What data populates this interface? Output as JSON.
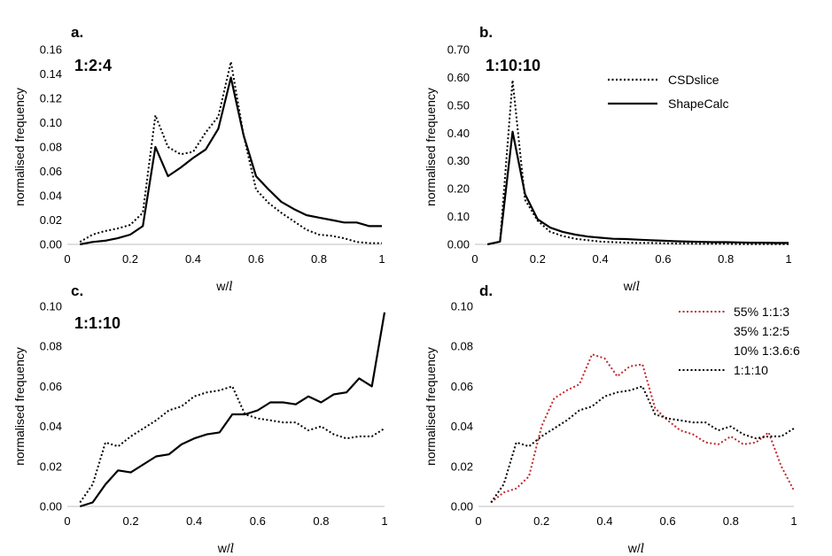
{
  "chart_data": [
    {
      "panel": "a.",
      "type": "line",
      "annotation": "1:2:4",
      "xlabel": "w/l",
      "ylabel": "normalised frequency",
      "xlim": [
        0,
        1
      ],
      "ylim": [
        0,
        0.16
      ],
      "xticks": [
        "0",
        "0.2",
        "0.4",
        "0.6",
        "0.8",
        "1"
      ],
      "yticks": [
        "0.00",
        "0.02",
        "0.04",
        "0.06",
        "0.08",
        "0.10",
        "0.12",
        "0.14",
        "0.16"
      ],
      "series": [
        {
          "name": "CSDslice",
          "style": "dotted",
          "color": "#000000",
          "x": [
            0.04,
            0.08,
            0.12,
            0.16,
            0.2,
            0.24,
            0.28,
            0.32,
            0.36,
            0.4,
            0.44,
            0.48,
            0.52,
            0.56,
            0.6,
            0.64,
            0.68,
            0.72,
            0.76,
            0.8,
            0.84,
            0.88,
            0.92,
            0.96,
            1.0
          ],
          "y": [
            0.002,
            0.008,
            0.011,
            0.013,
            0.016,
            0.026,
            0.106,
            0.08,
            0.074,
            0.076,
            0.092,
            0.105,
            0.15,
            0.09,
            0.045,
            0.034,
            0.026,
            0.019,
            0.012,
            0.008,
            0.007,
            0.005,
            0.002,
            0.001,
            0.001
          ]
        },
        {
          "name": "ShapeCalc",
          "style": "solid",
          "color": "#000000",
          "x": [
            0.04,
            0.08,
            0.12,
            0.16,
            0.2,
            0.24,
            0.28,
            0.32,
            0.36,
            0.4,
            0.44,
            0.48,
            0.52,
            0.56,
            0.6,
            0.64,
            0.68,
            0.72,
            0.76,
            0.8,
            0.84,
            0.88,
            0.92,
            0.96,
            1.0
          ],
          "y": [
            0.0,
            0.002,
            0.003,
            0.005,
            0.008,
            0.015,
            0.08,
            0.056,
            0.063,
            0.071,
            0.078,
            0.095,
            0.137,
            0.09,
            0.056,
            0.045,
            0.035,
            0.029,
            0.024,
            0.022,
            0.02,
            0.018,
            0.018,
            0.015,
            0.015
          ]
        }
      ]
    },
    {
      "panel": "b.",
      "type": "line",
      "annotation": "1:10:10",
      "xlabel": "w/l",
      "ylabel": "normalised frequency",
      "xlim": [
        0,
        1
      ],
      "ylim": [
        0,
        0.7
      ],
      "xticks": [
        "0",
        "0.2",
        "0.4",
        "0.6",
        "0.8",
        "1"
      ],
      "yticks": [
        "0.00",
        "0.10",
        "0.20",
        "0.30",
        "0.40",
        "0.50",
        "0.60",
        "0.70"
      ],
      "legend": [
        "CSDslice",
        "ShapeCalc"
      ],
      "series": [
        {
          "name": "CSDslice",
          "style": "dotted",
          "color": "#000000",
          "x": [
            0.04,
            0.08,
            0.12,
            0.16,
            0.2,
            0.24,
            0.28,
            0.32,
            0.36,
            0.4,
            0.44,
            0.48,
            0.52,
            0.56,
            0.6,
            0.64,
            0.68,
            0.72,
            0.76,
            0.8,
            0.84,
            0.88,
            0.92,
            0.96,
            1.0
          ],
          "y": [
            0.0,
            0.01,
            0.59,
            0.16,
            0.085,
            0.045,
            0.03,
            0.02,
            0.015,
            0.01,
            0.008,
            0.006,
            0.005,
            0.005,
            0.004,
            0.003,
            0.003,
            0.002,
            0.002,
            0.002,
            0.001,
            0.001,
            0.001,
            0.001,
            0.001
          ]
        },
        {
          "name": "ShapeCalc",
          "style": "solid",
          "color": "#000000",
          "x": [
            0.04,
            0.08,
            0.12,
            0.16,
            0.2,
            0.24,
            0.28,
            0.32,
            0.36,
            0.4,
            0.44,
            0.48,
            0.52,
            0.56,
            0.6,
            0.64,
            0.68,
            0.72,
            0.76,
            0.8,
            0.84,
            0.88,
            0.92,
            0.96,
            1.0
          ],
          "y": [
            0.0,
            0.01,
            0.405,
            0.18,
            0.09,
            0.06,
            0.045,
            0.035,
            0.028,
            0.024,
            0.02,
            0.019,
            0.017,
            0.015,
            0.013,
            0.011,
            0.01,
            0.009,
            0.008,
            0.008,
            0.007,
            0.006,
            0.006,
            0.005,
            0.005
          ]
        }
      ]
    },
    {
      "panel": "c.",
      "type": "line",
      "annotation": "1:1:10",
      "xlabel": "w/l",
      "ylabel": "normalised frequency",
      "xlim": [
        0,
        1
      ],
      "ylim": [
        0,
        0.1
      ],
      "xticks": [
        "0",
        "0.2",
        "0.4",
        "0.6",
        "0.8",
        "1"
      ],
      "yticks": [
        "0.00",
        "0.02",
        "0.04",
        "0.06",
        "0.08",
        "0.10"
      ],
      "series": [
        {
          "name": "CSDslice",
          "style": "dotted",
          "color": "#000000",
          "x": [
            0.04,
            0.08,
            0.12,
            0.16,
            0.2,
            0.24,
            0.28,
            0.32,
            0.36,
            0.4,
            0.44,
            0.48,
            0.52,
            0.56,
            0.6,
            0.64,
            0.68,
            0.72,
            0.76,
            0.8,
            0.84,
            0.88,
            0.92,
            0.96,
            1.0
          ],
          "y": [
            0.002,
            0.011,
            0.032,
            0.03,
            0.035,
            0.039,
            0.043,
            0.048,
            0.05,
            0.055,
            0.057,
            0.058,
            0.06,
            0.046,
            0.044,
            0.043,
            0.042,
            0.042,
            0.038,
            0.04,
            0.036,
            0.034,
            0.035,
            0.035,
            0.039
          ]
        },
        {
          "name": "ShapeCalc",
          "style": "solid",
          "color": "#000000",
          "x": [
            0.04,
            0.08,
            0.12,
            0.16,
            0.2,
            0.24,
            0.28,
            0.32,
            0.36,
            0.4,
            0.44,
            0.48,
            0.52,
            0.56,
            0.6,
            0.64,
            0.68,
            0.72,
            0.76,
            0.8,
            0.84,
            0.88,
            0.92,
            0.96,
            1.0
          ],
          "y": [
            0.0,
            0.002,
            0.011,
            0.018,
            0.017,
            0.021,
            0.025,
            0.026,
            0.031,
            0.034,
            0.036,
            0.037,
            0.046,
            0.046,
            0.048,
            0.052,
            0.052,
            0.051,
            0.055,
            0.052,
            0.056,
            0.057,
            0.064,
            0.06,
            0.097
          ]
        }
      ]
    },
    {
      "panel": "d.",
      "type": "line",
      "xlabel": "w/l",
      "ylabel": "normalised frequency",
      "xlim": [
        0,
        1
      ],
      "ylim": [
        0,
        0.1
      ],
      "xticks": [
        "0",
        "0.2",
        "0.4",
        "0.6",
        "0.8",
        "1"
      ],
      "yticks": [
        "0.00",
        "0.02",
        "0.04",
        "0.06",
        "0.08",
        "0.10"
      ],
      "legend": [
        "55% 1:1:3",
        "35% 1:2:5",
        "10% 1:3.6:6",
        "1:1:10"
      ],
      "series": [
        {
          "name": "55% 1:1:3 / 35% 1:2:5 / 10% 1:3.6:6",
          "style": "dotted",
          "color": "#c0282d",
          "x": [
            0.04,
            0.08,
            0.12,
            0.16,
            0.2,
            0.24,
            0.28,
            0.32,
            0.36,
            0.4,
            0.44,
            0.48,
            0.52,
            0.56,
            0.6,
            0.64,
            0.68,
            0.72,
            0.76,
            0.8,
            0.84,
            0.88,
            0.92,
            0.96,
            1.0
          ],
          "y": [
            0.002,
            0.007,
            0.009,
            0.015,
            0.04,
            0.054,
            0.058,
            0.061,
            0.076,
            0.074,
            0.065,
            0.07,
            0.071,
            0.049,
            0.043,
            0.038,
            0.036,
            0.032,
            0.031,
            0.035,
            0.031,
            0.032,
            0.037,
            0.02,
            0.008
          ]
        },
        {
          "name": "1:1:10",
          "style": "dotted",
          "color": "#000000",
          "x": [
            0.04,
            0.08,
            0.12,
            0.16,
            0.2,
            0.24,
            0.28,
            0.32,
            0.36,
            0.4,
            0.44,
            0.48,
            0.52,
            0.56,
            0.6,
            0.64,
            0.68,
            0.72,
            0.76,
            0.8,
            0.84,
            0.88,
            0.92,
            0.96,
            1.0
          ],
          "y": [
            0.002,
            0.011,
            0.032,
            0.03,
            0.035,
            0.039,
            0.043,
            0.048,
            0.05,
            0.055,
            0.057,
            0.058,
            0.06,
            0.046,
            0.044,
            0.043,
            0.042,
            0.042,
            0.038,
            0.04,
            0.036,
            0.034,
            0.035,
            0.035,
            0.039
          ]
        }
      ]
    }
  ]
}
